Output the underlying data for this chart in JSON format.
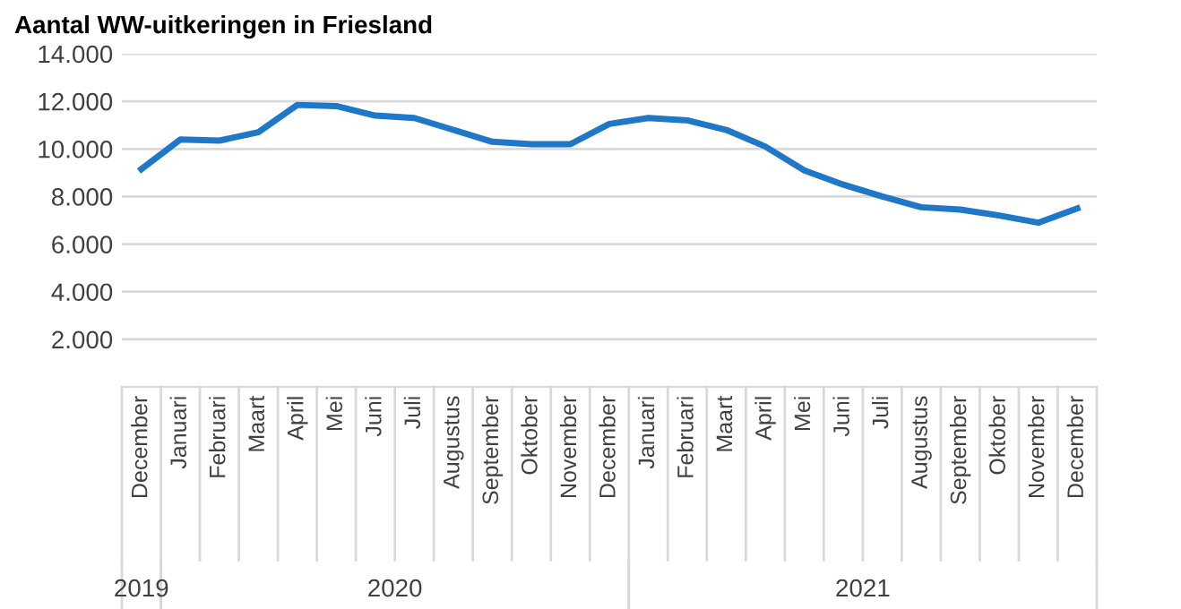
{
  "chart_data": {
    "type": "line",
    "title": "Aantal WW-uitkeringen in Friesland",
    "categories": [
      "December",
      "Januari",
      "Februari",
      "Maart",
      "April",
      "Mei",
      "Juni",
      "Juli",
      "Augustus",
      "September",
      "Oktober",
      "November",
      "December",
      "Januari",
      "Februari",
      "Maart",
      "April",
      "Mei",
      "Juni",
      "Juli",
      "Augustus",
      "September",
      "Oktober",
      "November",
      "December"
    ],
    "series": [
      {
        "color": "#1f77c8",
        "values": [
          9150,
          10400,
          10350,
          10700,
          11850,
          11800,
          11400,
          11300,
          10800,
          10300,
          10200,
          10200,
          11050,
          11300,
          11200,
          10800,
          10100,
          9100,
          8500,
          8000,
          7550,
          7450,
          7200,
          6900,
          7500
        ]
      }
    ],
    "ylim": [
      0,
      14000
    ],
    "yticks": [
      {
        "value": 2000,
        "label": "2.000"
      },
      {
        "value": 4000,
        "label": "4.000"
      },
      {
        "value": 6000,
        "label": "6.000"
      },
      {
        "value": 8000,
        "label": "8.000"
      },
      {
        "value": 10000,
        "label": "10.000"
      },
      {
        "value": 12000,
        "label": "12.000"
      },
      {
        "value": 14000,
        "label": "14.000"
      }
    ],
    "grid": "y",
    "marker": "none",
    "line_style": "solid",
    "legend": false,
    "annotations": [
      "2019",
      "2020",
      "2021"
    ]
  }
}
